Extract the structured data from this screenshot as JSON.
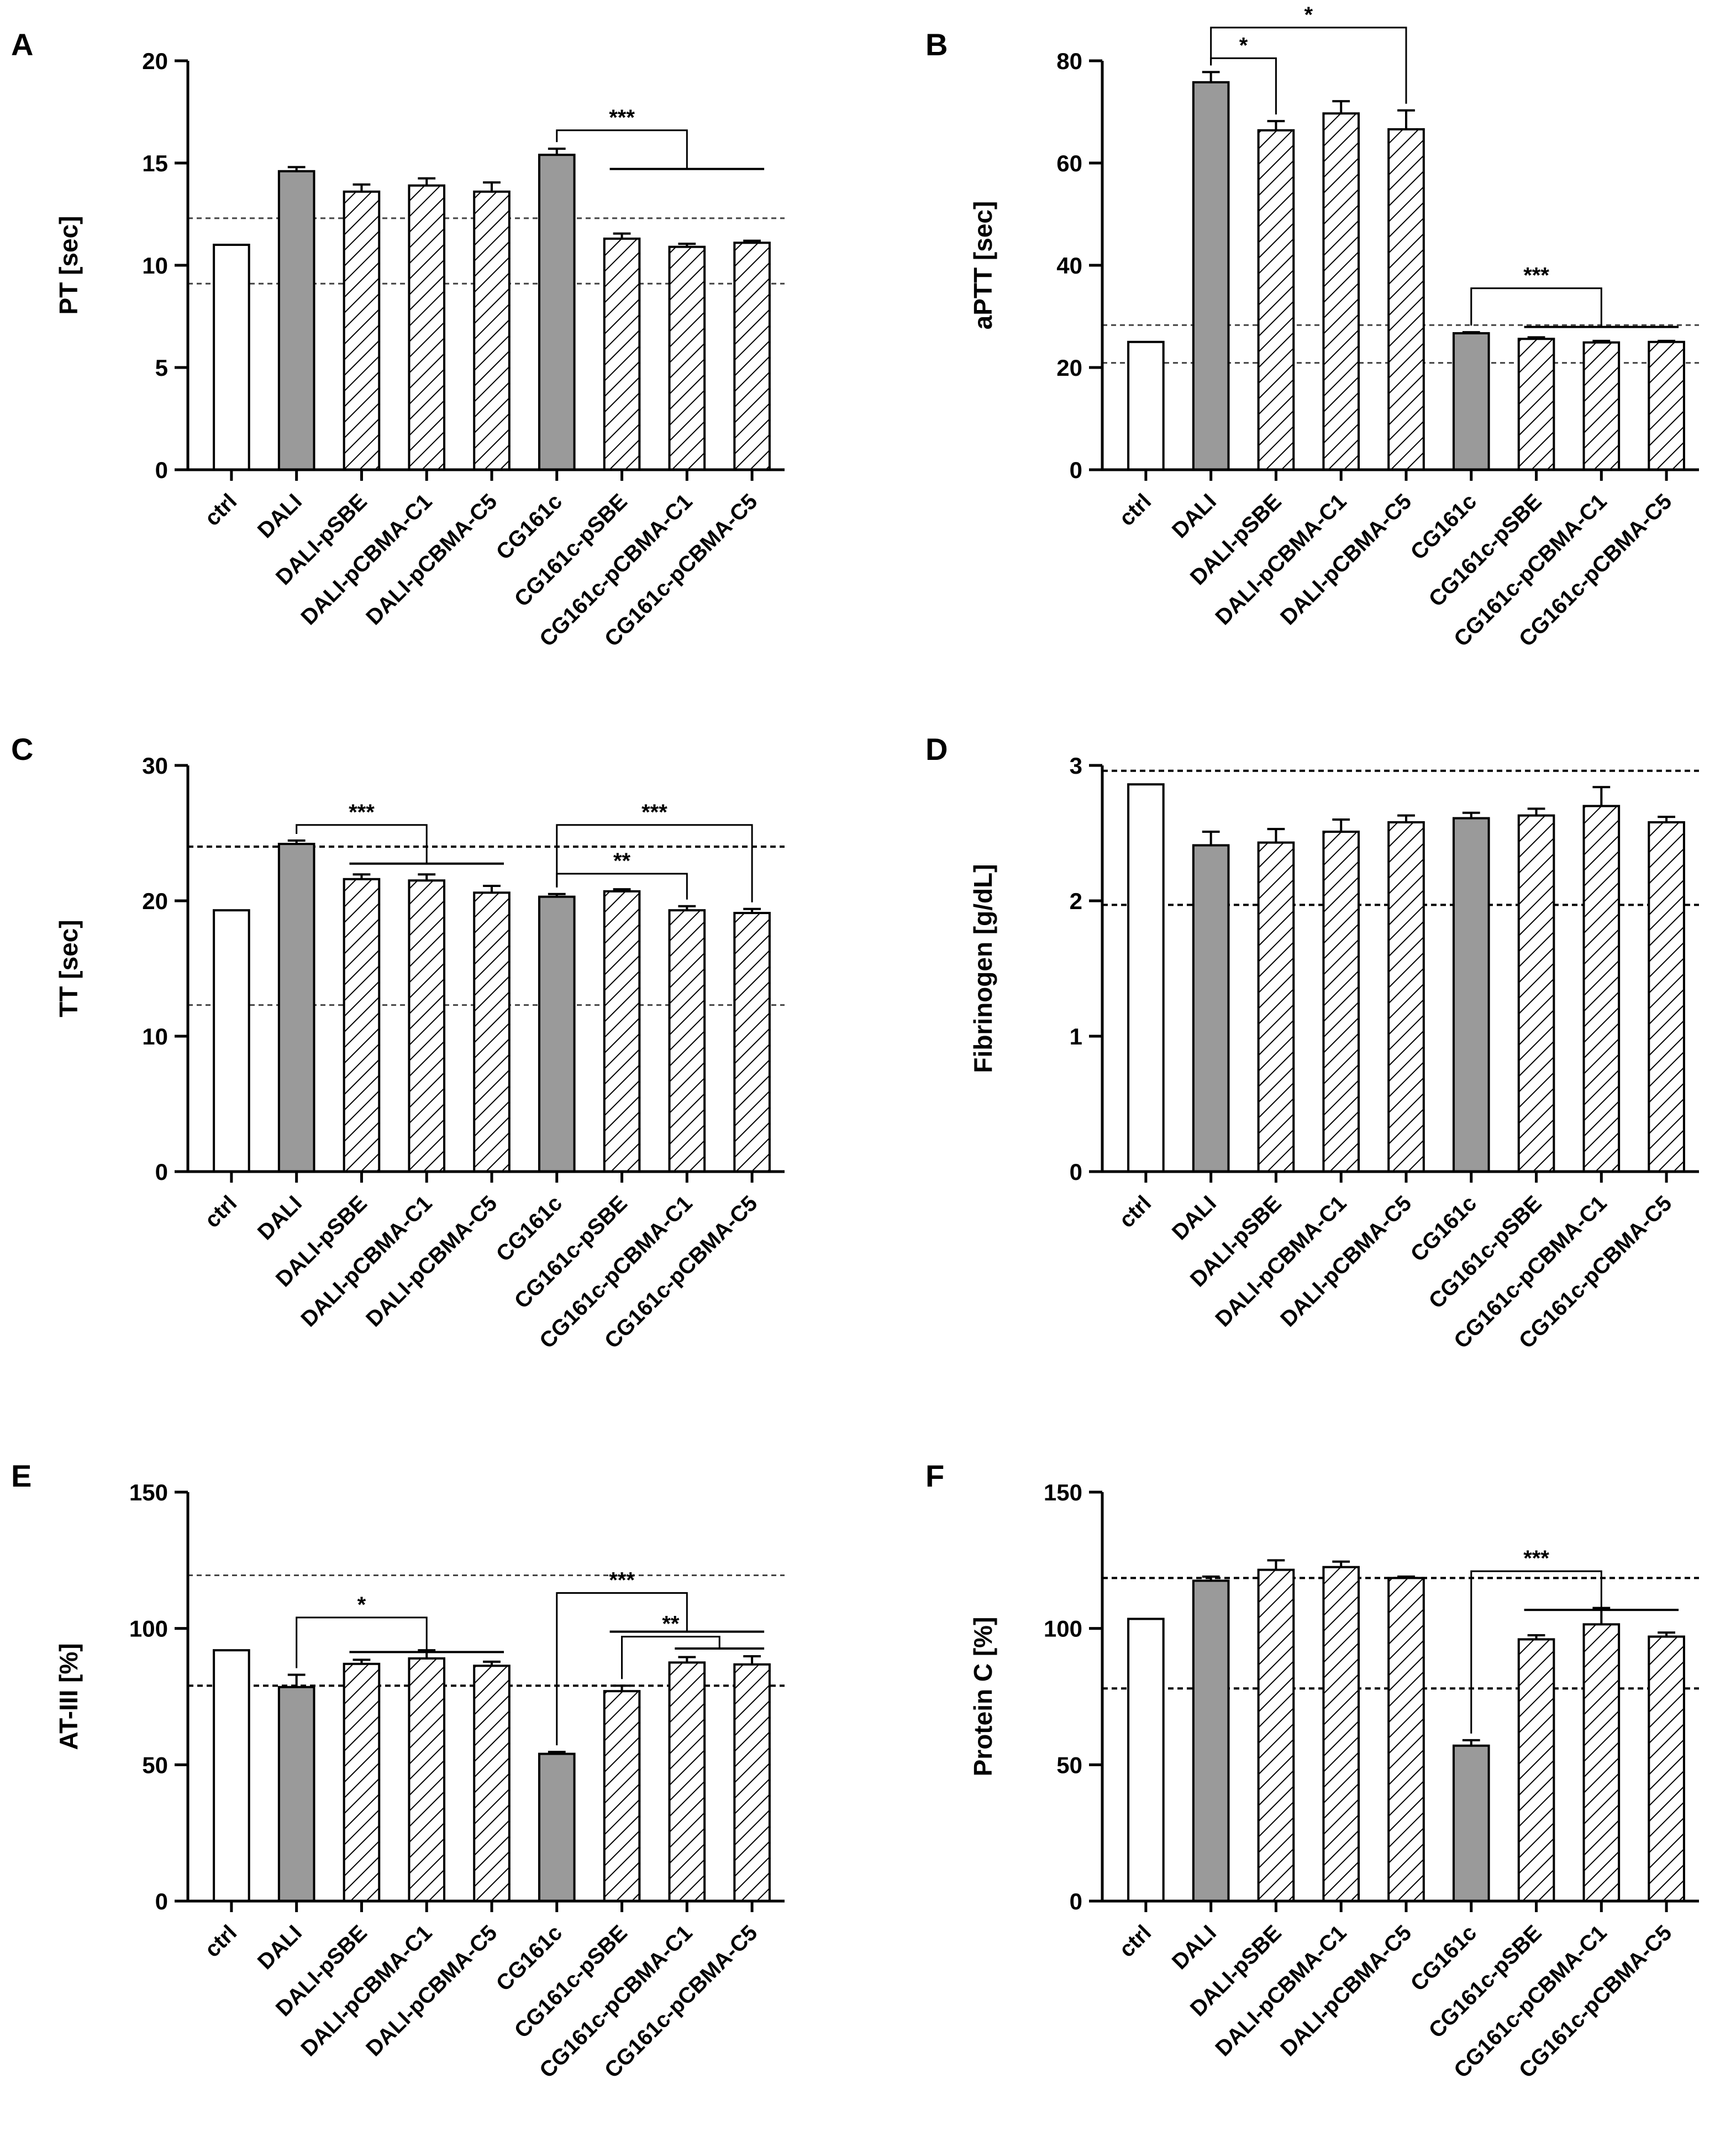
{
  "chart_data": [
    {
      "type": "bar",
      "panel": "A",
      "ylabel": "PT [sec]",
      "ylim": [
        0,
        20
      ],
      "yticks": [
        0,
        5,
        10,
        15,
        20
      ],
      "categories": [
        "ctrl",
        "DALI",
        "DALI-pSBE",
        "DALI-pCBMA-C1",
        "DALI-pCBMA-C5",
        "CG161c",
        "CG161c-pSBE",
        "CG161c-pCBMA-C1",
        "CG161c-pCBMA-C5"
      ],
      "values": [
        11.0,
        14.6,
        13.6,
        13.9,
        13.6,
        15.4,
        11.3,
        10.9,
        11.1
      ],
      "errors": [
        0,
        0.2,
        0.35,
        0.35,
        0.45,
        0.3,
        0.25,
        0.15,
        0.1
      ],
      "styles": [
        "white",
        "gray",
        "hatch",
        "hatch",
        "hatch",
        "gray",
        "hatch",
        "hatch",
        "hatch"
      ],
      "reference_lines": [
        {
          "value": 12.3,
          "style": "dashed-light"
        },
        {
          "value": 9.1,
          "style": "dashed-light"
        }
      ],
      "significance": [
        {
          "label": "***",
          "from": 5,
          "to": [
            6,
            8
          ],
          "height": 16.6
        }
      ]
    },
    {
      "type": "bar",
      "panel": "B",
      "ylabel": "aPTT [sec]",
      "ylim": [
        0,
        80
      ],
      "yticks": [
        0,
        20,
        40,
        60,
        80
      ],
      "categories": [
        "ctrl",
        "DALI",
        "DALI-pSBE",
        "DALI-pCBMA-C1",
        "DALI-pCBMA-C5",
        "CG161c",
        "CG161c-pSBE",
        "CG161c-pCBMA-C1",
        "CG161c-pCBMA-C5"
      ],
      "values": [
        25.0,
        75.8,
        66.4,
        69.7,
        66.6,
        26.7,
        25.6,
        24.9,
        25.0
      ],
      "errors": [
        0,
        2.0,
        1.8,
        2.4,
        3.7,
        0.2,
        0.3,
        0.3,
        0.2
      ],
      "styles": [
        "white",
        "gray",
        "hatch",
        "hatch",
        "hatch",
        "gray",
        "hatch",
        "hatch",
        "hatch"
      ],
      "reference_lines": [
        {
          "value": 28.3,
          "style": "dashed-light"
        },
        {
          "value": 20.9,
          "style": "dashed-light"
        }
      ],
      "significance": [
        {
          "label": "*",
          "from": 1,
          "to": [
            2
          ],
          "height": 80.5
        },
        {
          "label": "*",
          "from": 1,
          "to": [
            4
          ],
          "height": 86.5
        },
        {
          "label": "***",
          "from": 5,
          "to": [
            6,
            8
          ],
          "height": 35.5
        }
      ]
    },
    {
      "type": "bar",
      "panel": "C",
      "ylabel": "TT [sec]",
      "ylim": [
        0,
        30
      ],
      "yticks": [
        0,
        10,
        20,
        30
      ],
      "categories": [
        "ctrl",
        "DALI",
        "DALI-pSBE",
        "DALI-pCBMA-C1",
        "DALI-pCBMA-C5",
        "CG161c",
        "CG161c-pSBE",
        "CG161c-pCBMA-C1",
        "CG161c-pCBMA-C5"
      ],
      "values": [
        19.3,
        24.2,
        21.6,
        21.5,
        20.6,
        20.3,
        20.7,
        19.3,
        19.1
      ],
      "errors": [
        0,
        0.25,
        0.35,
        0.45,
        0.5,
        0.2,
        0.15,
        0.3,
        0.3
      ],
      "styles": [
        "white",
        "gray",
        "hatch",
        "hatch",
        "hatch",
        "gray",
        "hatch",
        "hatch",
        "hatch"
      ],
      "reference_lines": [
        {
          "value": 24.0,
          "style": "dashed-dark"
        },
        {
          "value": 12.3,
          "style": "dashed-light"
        }
      ],
      "significance": [
        {
          "label": "***",
          "from": 1,
          "to": [
            2,
            4
          ],
          "height": 25.6
        },
        {
          "label": "**",
          "from": 5,
          "to": [
            7
          ],
          "height": 22.0
        },
        {
          "label": "***",
          "from": 5,
          "to": [
            8
          ],
          "height": 25.6
        }
      ]
    },
    {
      "type": "bar",
      "panel": "D",
      "ylabel": "Fibrinogen [g/dL]",
      "ylim": [
        0,
        3
      ],
      "yticks": [
        0,
        1,
        2,
        3
      ],
      "categories": [
        "ctrl",
        "DALI",
        "DALI-pSBE",
        "DALI-pCBMA-C1",
        "DALI-pCBMA-C5",
        "CG161c",
        "CG161c-pSBE",
        "CG161c-pCBMA-C1",
        "CG161c-pCBMA-C5"
      ],
      "values": [
        2.86,
        2.41,
        2.43,
        2.51,
        2.58,
        2.61,
        2.63,
        2.7,
        2.58
      ],
      "errors": [
        0,
        0.1,
        0.1,
        0.09,
        0.05,
        0.04,
        0.05,
        0.14,
        0.04
      ],
      "styles": [
        "white",
        "gray",
        "hatch",
        "hatch",
        "hatch",
        "gray",
        "hatch",
        "hatch",
        "hatch"
      ],
      "reference_lines": [
        {
          "value": 2.96,
          "style": "dashed-dark"
        },
        {
          "value": 1.97,
          "style": "dashed-dark"
        }
      ],
      "significance": []
    },
    {
      "type": "bar",
      "panel": "E",
      "ylabel": "AT-III [%]",
      "ylim": [
        0,
        150
      ],
      "yticks": [
        0,
        50,
        100,
        150
      ],
      "categories": [
        "ctrl",
        "DALI",
        "DALI-pSBE",
        "DALI-pCBMA-C1",
        "DALI-pCBMA-C5",
        "CG161c",
        "CG161c-pSBE",
        "CG161c-pCBMA-C1",
        "CG161c-pCBMA-C5"
      ],
      "values": [
        92,
        78.5,
        87.0,
        89.0,
        86.3,
        54.0,
        77.0,
        87.5,
        86.8
      ],
      "errors": [
        0,
        4.5,
        1.5,
        3.0,
        1.5,
        0.7,
        2.0,
        2.0,
        3.0
      ],
      "styles": [
        "white",
        "gray",
        "hatch",
        "hatch",
        "hatch",
        "gray",
        "hatch",
        "hatch",
        "hatch"
      ],
      "reference_lines": [
        {
          "value": 119.5,
          "style": "dashed-light"
        },
        {
          "value": 79.0,
          "style": "dashed-dark"
        }
      ],
      "significance": [
        {
          "label": "*",
          "from": 1,
          "to": [
            2,
            4
          ],
          "height": 104
        },
        {
          "label": "***",
          "from": 5,
          "to": [
            6,
            8
          ],
          "height": 113
        },
        {
          "label": "**",
          "from": 6,
          "to": [
            7,
            8
          ],
          "height": 97
        }
      ]
    },
    {
      "type": "bar",
      "panel": "F",
      "ylabel": "Protein C [%]",
      "ylim": [
        0,
        150
      ],
      "yticks": [
        0,
        50,
        100,
        150
      ],
      "categories": [
        "ctrl",
        "DALI",
        "DALI-pSBE",
        "DALI-pCBMA-C1",
        "DALI-pCBMA-C5",
        "CG161c",
        "CG161c-pSBE",
        "CG161c-pCBMA-C1",
        "CG161c-pCBMA-C5"
      ],
      "values": [
        103.5,
        117.5,
        121.5,
        122.5,
        118.5,
        57.0,
        96.0,
        101.5,
        97.0
      ],
      "errors": [
        0,
        1.5,
        3.5,
        2.0,
        0.5,
        2.0,
        1.5,
        6.0,
        1.5
      ],
      "styles": [
        "white",
        "gray",
        "hatch",
        "hatch",
        "hatch",
        "gray",
        "hatch",
        "hatch",
        "hatch"
      ],
      "reference_lines": [
        {
          "value": 118.5,
          "style": "dashed-dark"
        },
        {
          "value": 78.0,
          "style": "dashed-dark"
        }
      ],
      "significance": [
        {
          "label": "***",
          "from": 5,
          "to": [
            6,
            8
          ],
          "height": 121
        }
      ]
    }
  ]
}
